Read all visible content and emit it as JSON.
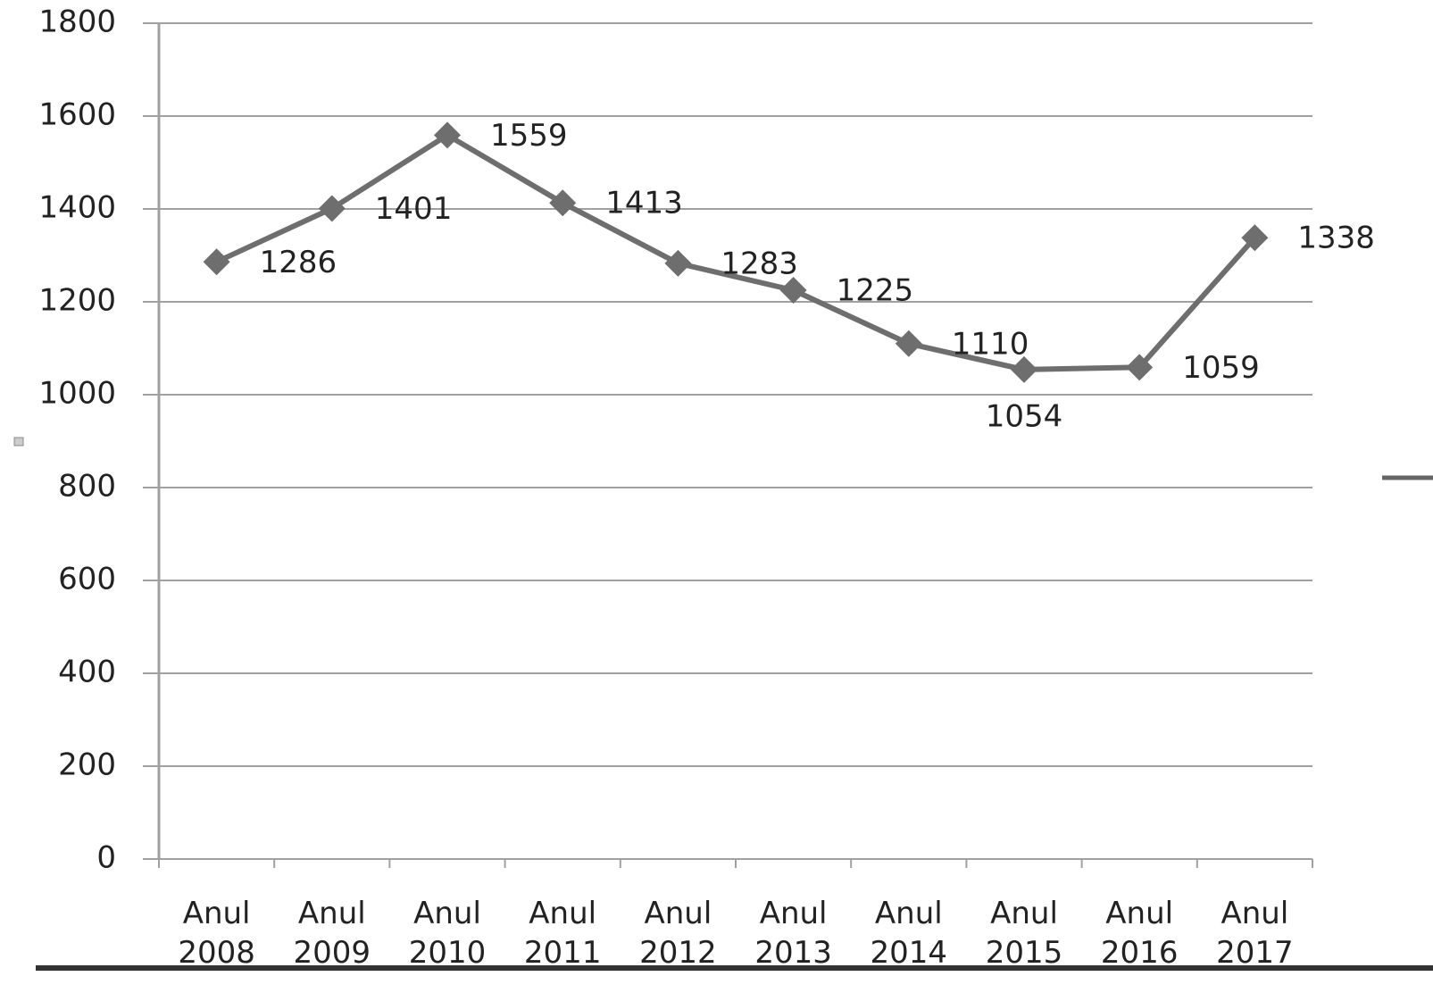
{
  "chart_data": {
    "type": "line",
    "categories": [
      "Anul 2008",
      "Anul 2009",
      "Anul 2010",
      "Anul 2011",
      "Anul 2012",
      "Anul 2013",
      "Anul 2014",
      "Anul 2015",
      "Anul 2016",
      "Anul 2017"
    ],
    "values": [
      1286,
      1401,
      1559,
      1413,
      1283,
      1225,
      1110,
      1054,
      1059,
      1338
    ],
    "color": "#6e6e6e",
    "ylim": [
      0,
      1800
    ],
    "yticks": [
      0,
      200,
      400,
      600,
      800,
      1000,
      1200,
      1400,
      1600,
      1800
    ],
    "grid": true
  }
}
